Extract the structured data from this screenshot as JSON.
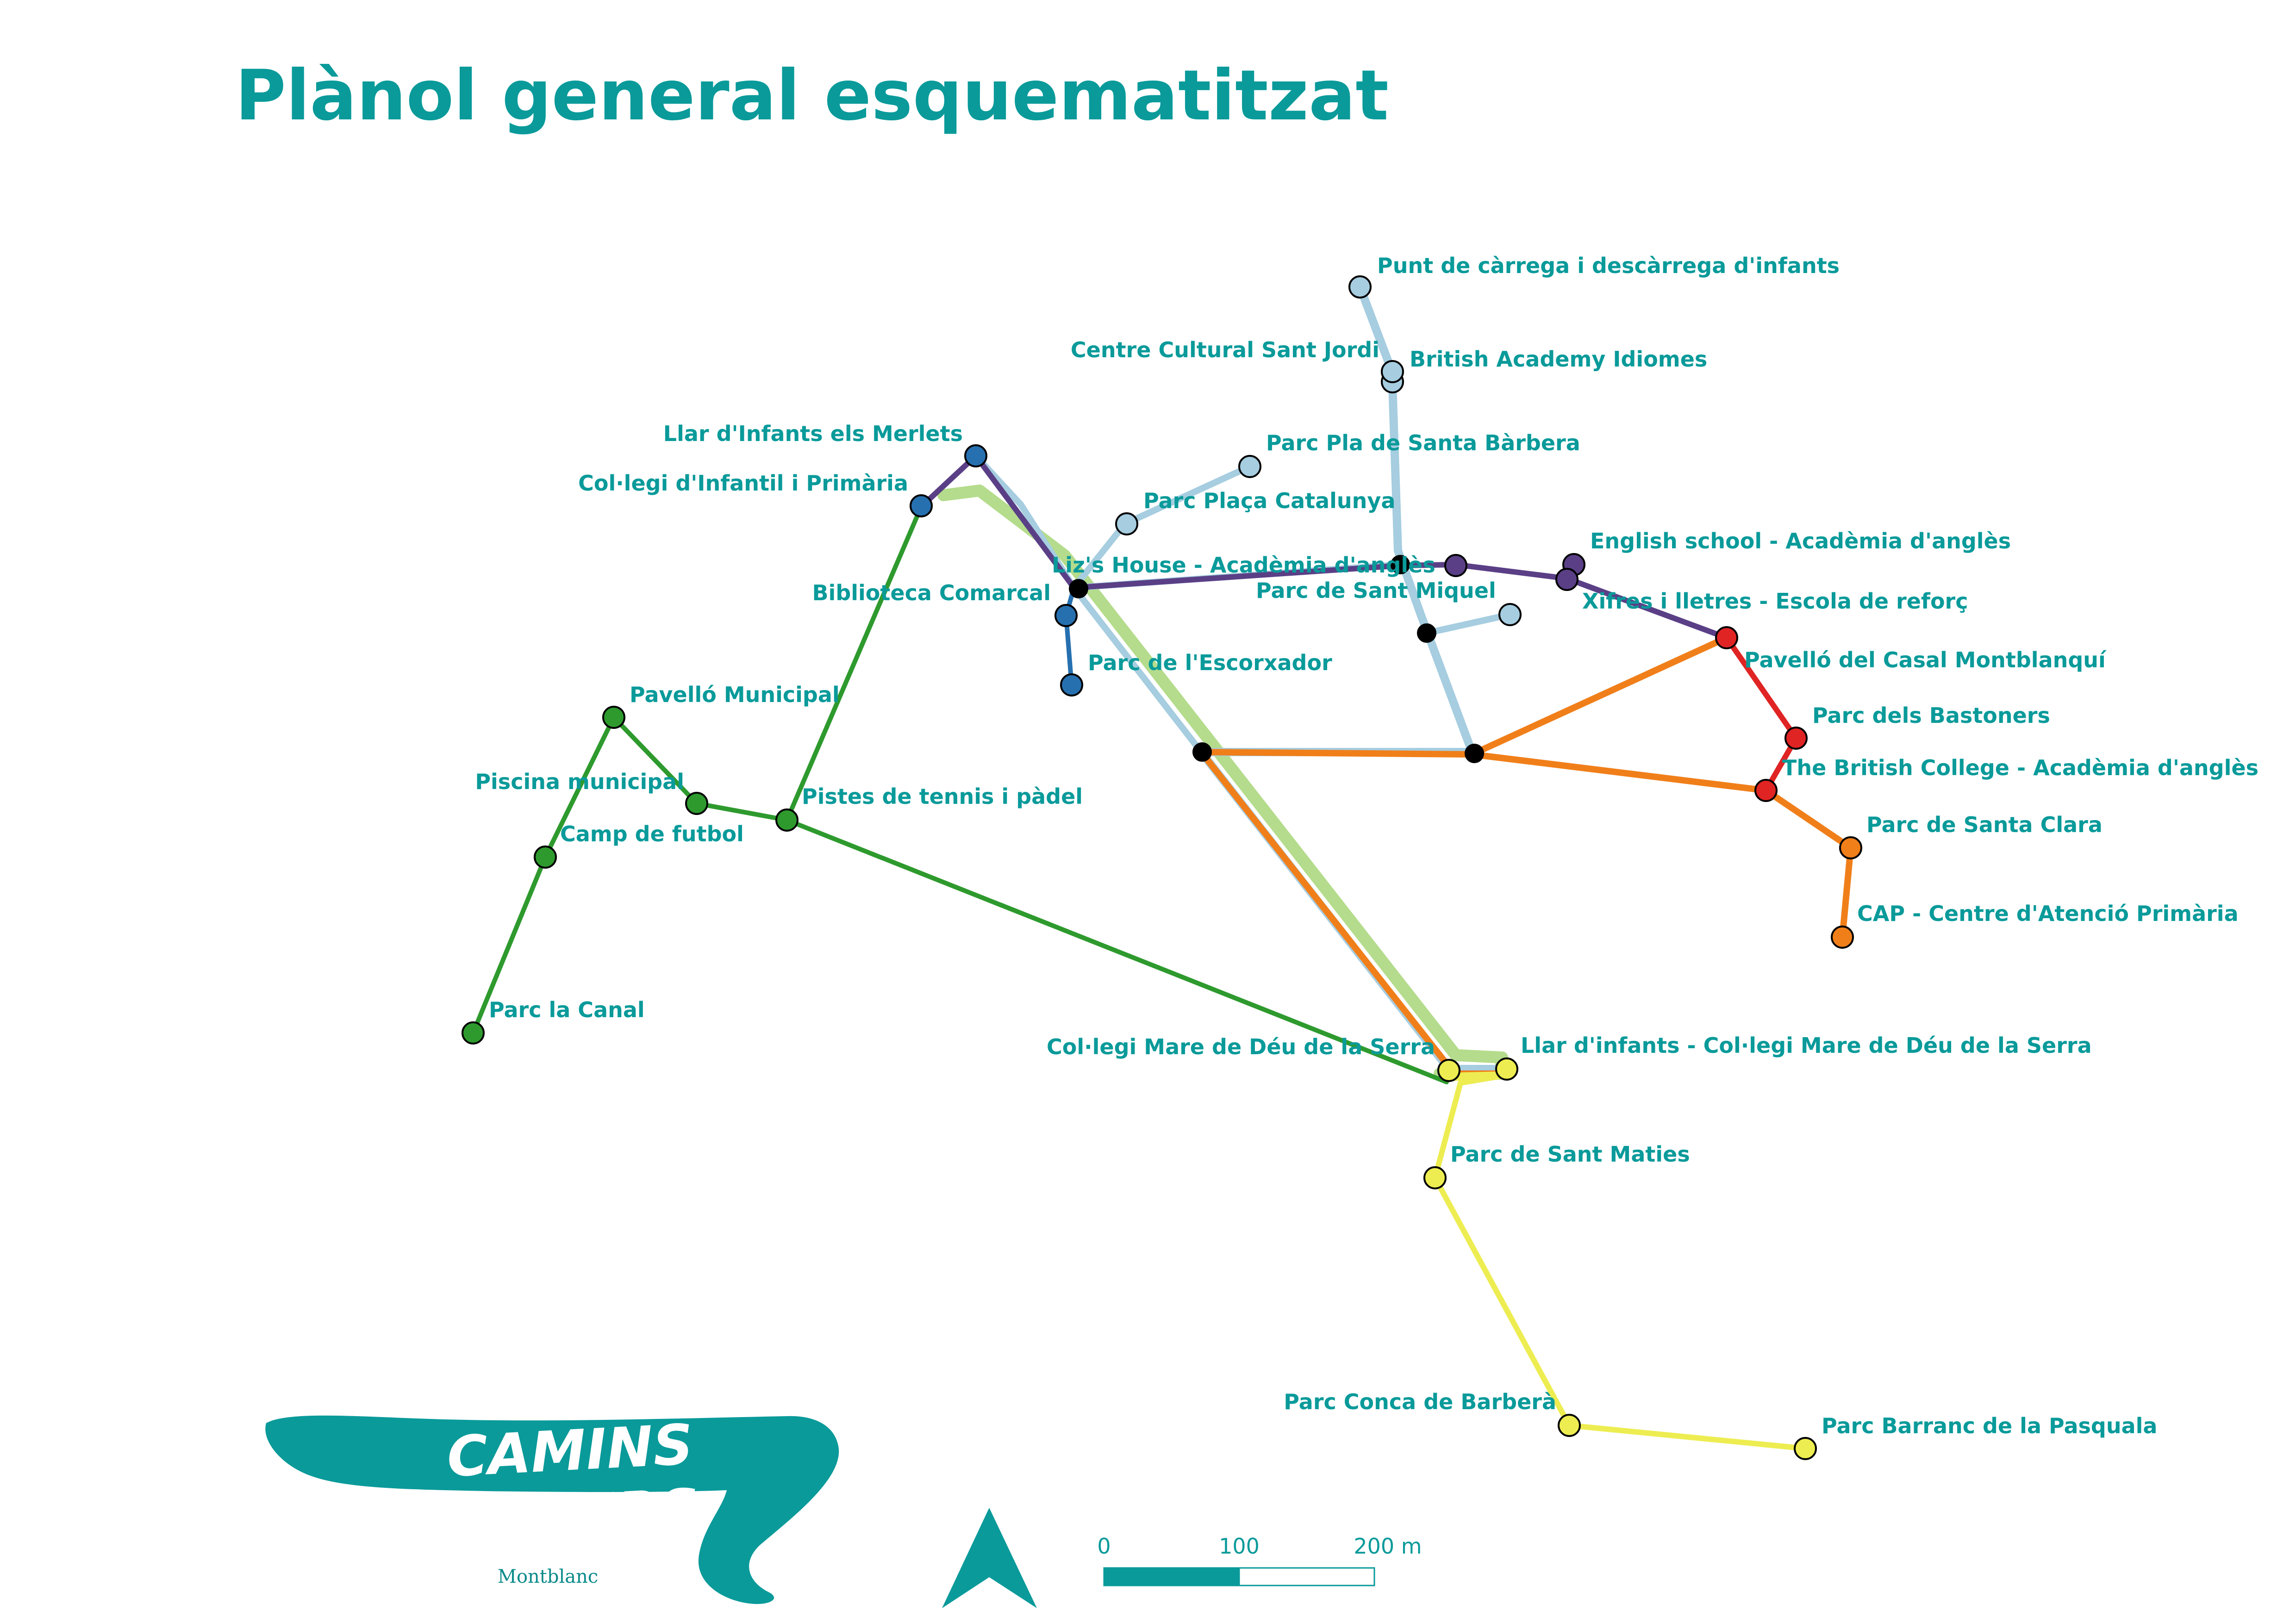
{
  "title": "Plànol general esquematitzat",
  "colors": {
    "title": "#0a9a9a",
    "label": "#0a9a9a",
    "brand": "#0a9a9a",
    "route_dark_green": "#2e9a2e",
    "route_light_green": "#b4dc8c",
    "route_dark_blue": "#2670b0",
    "route_light_blue": "#a6cde0",
    "route_purple": "#5a3f86",
    "route_red": "#e02424",
    "route_orange": "#f07f1a",
    "route_yellow": "#eded52",
    "junction": "#000000"
  },
  "stops": {
    "punt_carrega": "Punt de càrrega i descàrrega d'infants",
    "centre_cultural": "Centre Cultural Sant Jordi",
    "british_academy": "British Academy Idiomes",
    "llar_merlets": "Llar d'Infants els Merlets",
    "parc_santa_barbera": "Parc Pla de Santa Bàrbera",
    "collegi_infantil": "Col·legi d'Infantil i Primària",
    "parc_catalunya": "Parc Plaça Catalunya",
    "english_school": "English school - Acadèmia d'anglès",
    "lizs_house": "Liz's House - Acadèmia d'anglès",
    "biblioteca": "Biblioteca Comarcal",
    "parc_sant_miquel": "Parc de Sant Miquel",
    "xifres": "Xifres i lletres - Escola de reforç",
    "pavello_casal": "Pavelló del Casal Montblanquí",
    "parc_escorxador": "Parc de l'Escorxador",
    "pavello_municipal": "Pavelló Municipal",
    "parc_bastoners": "Parc dels Bastoners",
    "british_college": "The British College - Acadèmia d'anglès",
    "piscina": "Piscina municipal",
    "pistes_tennis": "Pistes de tennis i pàdel",
    "camp_futbol": "Camp de futbol",
    "parc_santa_clara": "Parc de Santa Clara",
    "cap": "CAP - Centre d'Atenció Primària",
    "parc_canal": "Parc la Canal",
    "collegi_mare_deu": "Col·legi Mare de Déu de la Serra",
    "llar_mare_deu": "Llar d'infants - Col·legi Mare de Déu de la Serra",
    "parc_sant_maties": "Parc de Sant Maties",
    "parc_conca": "Parc Conca de Barberà",
    "parc_barranc": "Parc Barranc de la Pasquala"
  },
  "scale_bar": {
    "tick_0": "0",
    "tick_100": "100",
    "tick_200": "200 m"
  },
  "north_arrow": "north-arrow-icon",
  "logo": {
    "line1": "CAMINS",
    "line2": "SEGURS",
    "town": "Montblanc"
  }
}
